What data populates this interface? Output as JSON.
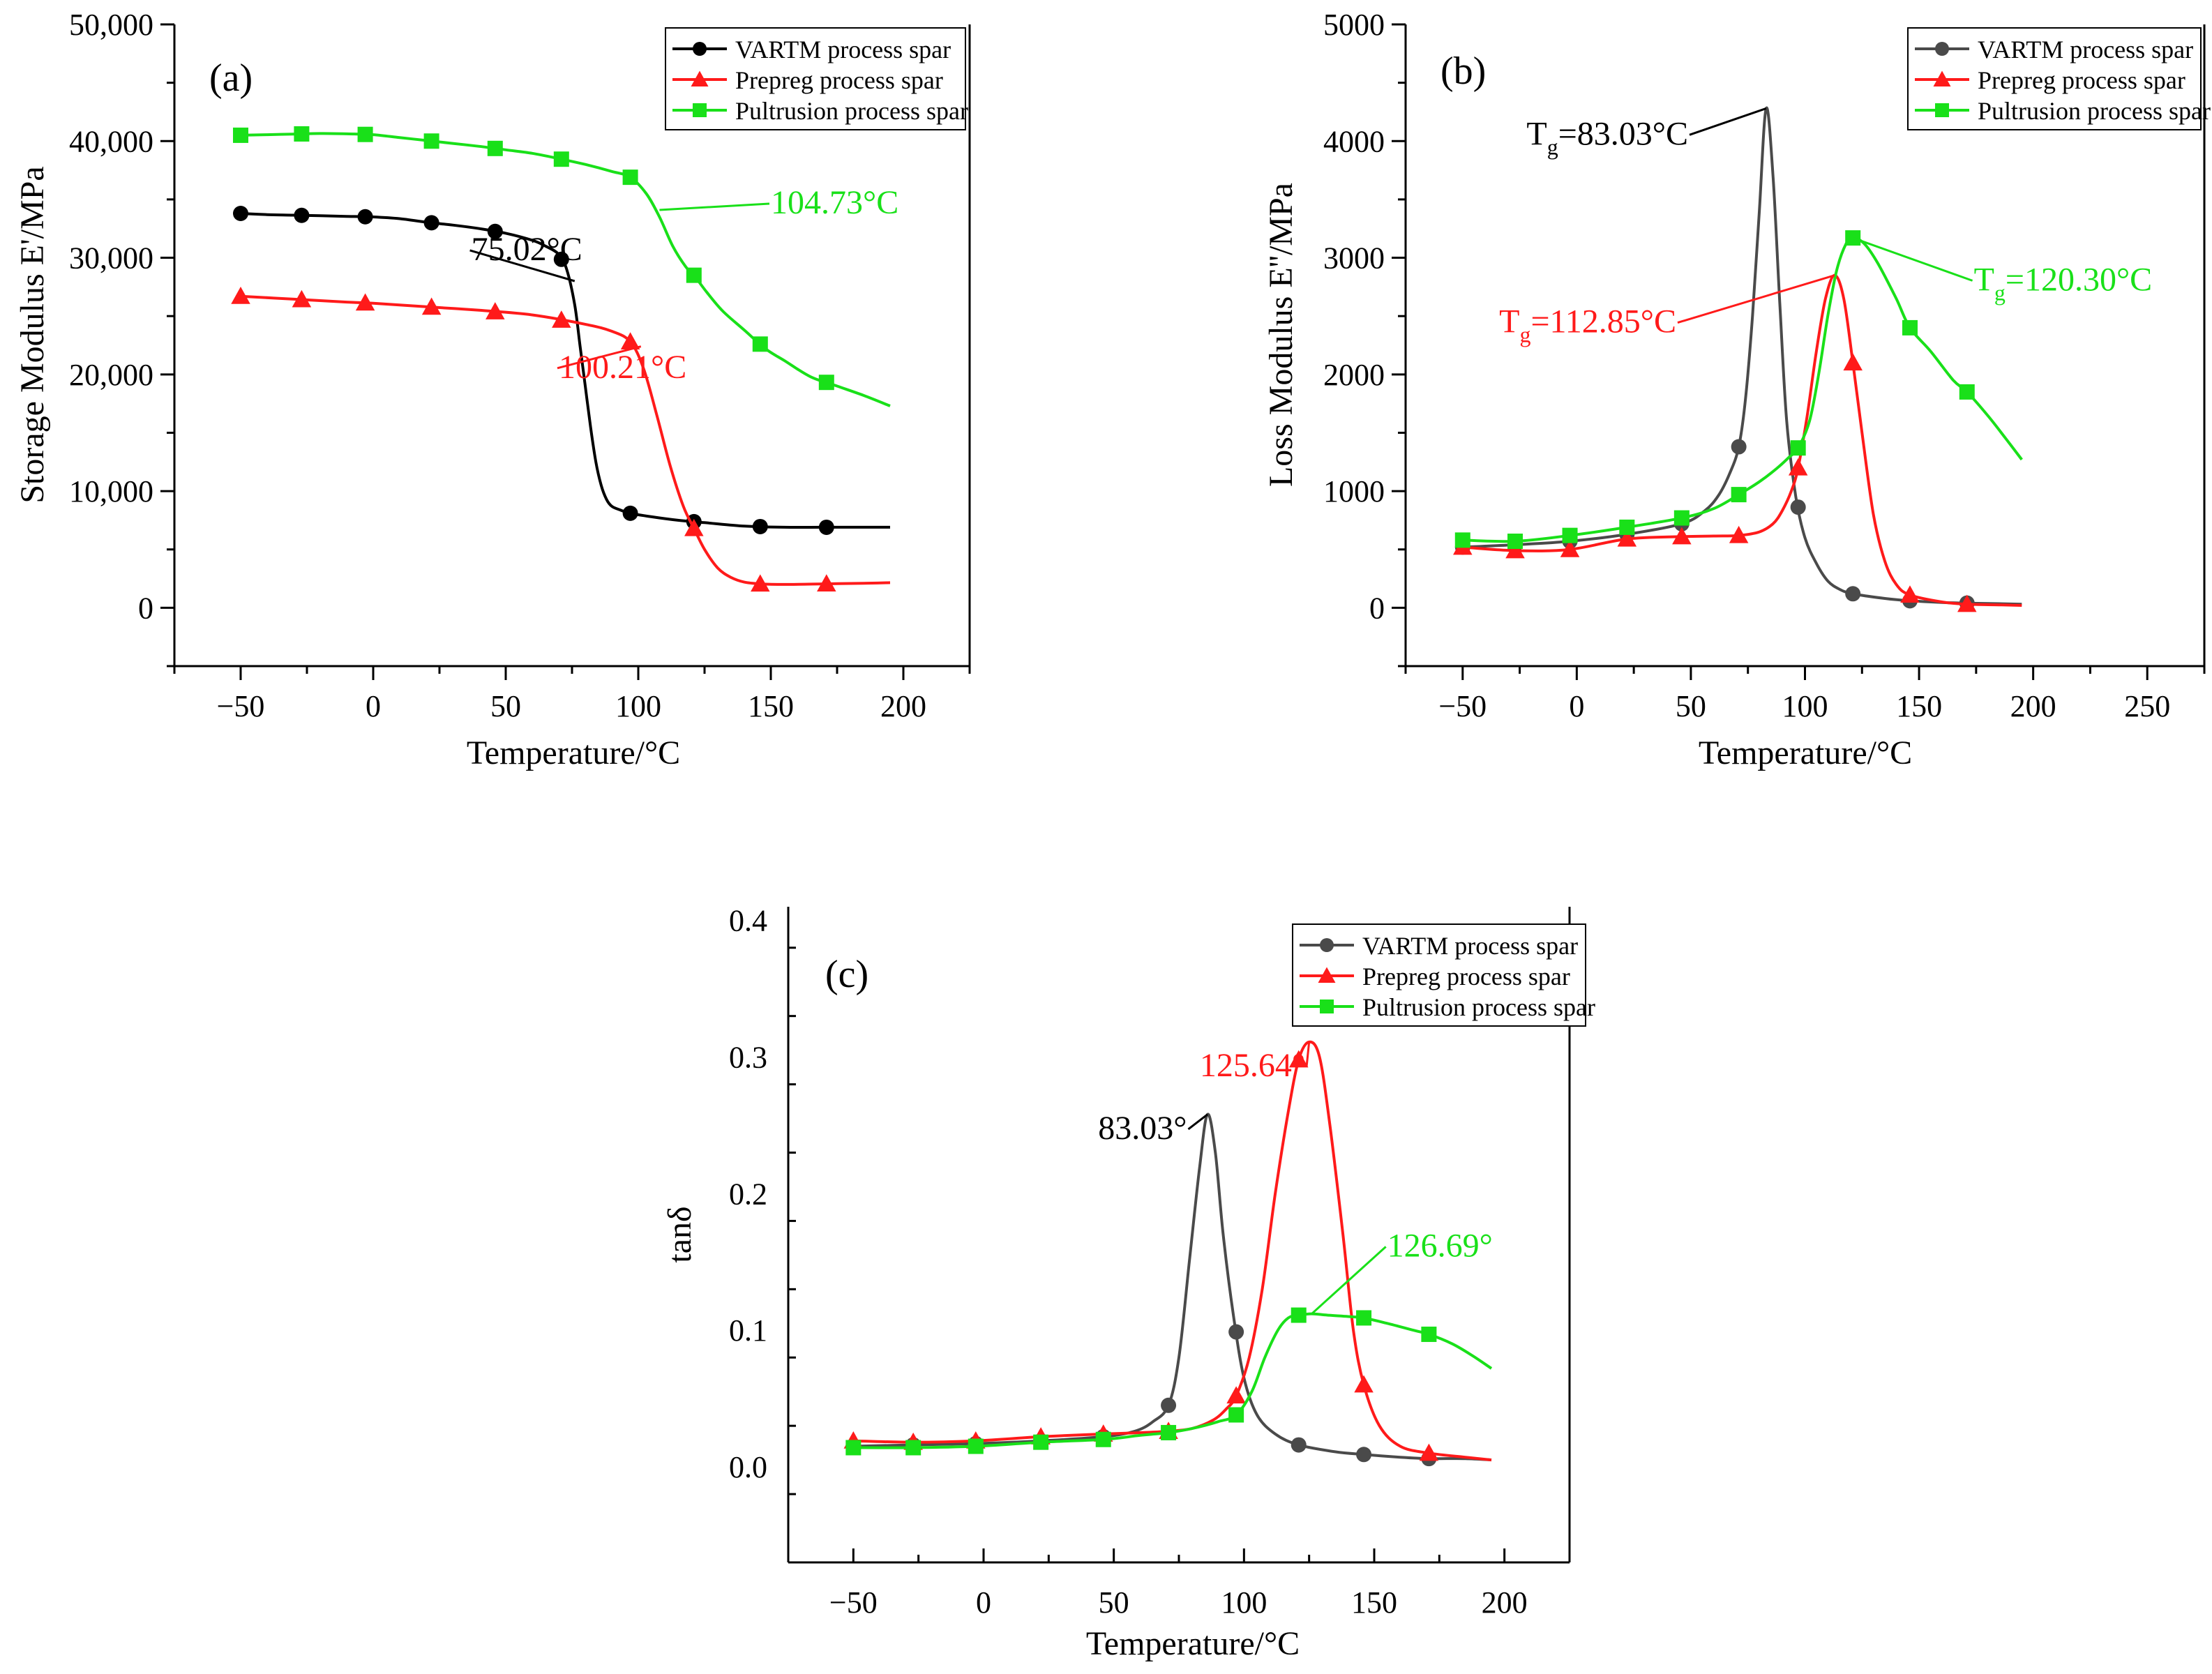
{
  "series_colors": {
    "VARTM": "#000000",
    "VARTM_b": "#4a4a4a",
    "Prepreg": "#ff1a1a",
    "Pultrusion": "#19e019"
  },
  "chart_data": [
    {
      "type": "line",
      "panel_label": "(a)",
      "xlabel": "Temperature/°C",
      "ylabel": "Storage Modulus E'/MPa",
      "xlim": [
        -75,
        225
      ],
      "ylim": [
        -5000,
        50000
      ],
      "xticks": [
        -50,
        0,
        50,
        100,
        150,
        200
      ],
      "xtick_labels": [
        "−50",
        "0",
        "50",
        "100",
        "150",
        "200"
      ],
      "yticks": [
        0,
        10000,
        20000,
        30000,
        40000,
        50000
      ],
      "ytick_labels": [
        "0",
        "10,000",
        "20,000",
        "30,000",
        "40,000",
        "50,000"
      ],
      "legend": "top-right",
      "series": [
        {
          "key": "vartm",
          "name": "VARTM process spar",
          "color": "#000000",
          "marker": "circle",
          "x": [
            -50,
            -40,
            -30,
            -20,
            -10,
            0,
            10,
            20,
            30,
            40,
            50,
            60,
            65,
            70,
            73,
            76,
            78,
            80,
            82,
            84,
            86,
            88,
            90,
            93,
            97,
            105,
            115,
            125,
            140,
            155,
            170,
            185,
            195
          ],
          "y": [
            33800,
            33700,
            33650,
            33600,
            33550,
            33500,
            33350,
            33050,
            32800,
            32500,
            32100,
            31500,
            31000,
            30300,
            29000,
            26000,
            22500,
            19000,
            15500,
            12500,
            10500,
            9300,
            8700,
            8400,
            8100,
            7800,
            7500,
            7300,
            7000,
            6900,
            6900,
            6900,
            6900
          ],
          "marker_x": [
            -50,
            -27,
            -3,
            22,
            46,
            71,
            97,
            121,
            146,
            171
          ]
        },
        {
          "key": "prepreg",
          "name": "Prepreg process spar",
          "color": "#ff1a1a",
          "marker": "triangle",
          "x": [
            -50,
            -30,
            -10,
            0,
            20,
            40,
            60,
            80,
            90,
            97,
            102,
            107,
            112,
            117,
            121,
            125,
            130,
            135,
            140,
            146,
            155,
            170,
            185,
            195
          ],
          "y": [
            26700,
            26450,
            26200,
            26100,
            25800,
            25500,
            25100,
            24300,
            23700,
            22800,
            20500,
            16500,
            12200,
            8700,
            6800,
            5000,
            3400,
            2600,
            2200,
            2050,
            2000,
            2050,
            2100,
            2150
          ],
          "marker_x": [
            -50,
            -27,
            -3,
            22,
            46,
            71,
            97,
            121,
            146,
            171
          ]
        },
        {
          "key": "pultrusion",
          "name": "Pultrusion process spar",
          "color": "#19e019",
          "marker": "square",
          "x": [
            -50,
            -40,
            -30,
            -20,
            -10,
            0,
            10,
            20,
            30,
            40,
            50,
            60,
            70,
            80,
            90,
            97,
            103,
            108,
            113,
            118,
            121,
            126,
            132,
            140,
            148,
            155,
            165,
            175,
            185,
            195
          ],
          "y": [
            40500,
            40550,
            40600,
            40650,
            40620,
            40550,
            40300,
            40050,
            39800,
            39550,
            39250,
            38950,
            38500,
            38000,
            37400,
            36900,
            35500,
            33500,
            31000,
            29200,
            28500,
            27000,
            25400,
            23800,
            22200,
            21200,
            19800,
            19000,
            18200,
            17300
          ],
          "marker_x": [
            -50,
            -27,
            -3,
            22,
            46,
            71,
            97,
            121,
            146,
            171
          ]
        }
      ],
      "annotations": [
        {
          "key": "a_ann_vartm",
          "text": "75.02°C",
          "color": "#000000",
          "x": 37,
          "y": 29800,
          "line_to": [
            76,
            28000
          ]
        },
        {
          "key": "a_ann_prepreg",
          "text": "100.21°C",
          "color": "#ff1a1a",
          "x": 70,
          "y": 19700,
          "line_to": [
            101,
            22400
          ]
        },
        {
          "key": "a_ann_pultrusion",
          "text": "104.73°C",
          "color": "#19e019",
          "x": 150,
          "y": 33800,
          "line_to": [
            108,
            34100
          ]
        }
      ]
    },
    {
      "type": "line",
      "panel_label": "(b)",
      "xlabel": "Temperature/°C",
      "ylabel": "Loss Modulus E''/MPa",
      "xlim": [
        -75,
        275
      ],
      "ylim": [
        -500,
        5000
      ],
      "xticks": [
        -50,
        0,
        50,
        100,
        150,
        200,
        250
      ],
      "xtick_labels": [
        "−50",
        "0",
        "50",
        "100",
        "150",
        "200",
        "250"
      ],
      "yticks": [
        0,
        1000,
        2000,
        3000,
        4000,
        5000
      ],
      "ytick_labels": [
        "0",
        "1000",
        "2000",
        "3000",
        "4000",
        "5000"
      ],
      "legend": "top-right",
      "series": [
        {
          "key": "vartm",
          "name": "VARTM process spar",
          "color": "#4a4a4a",
          "marker": "circle",
          "x": [
            -50,
            -27,
            -3,
            22,
            46,
            56,
            62,
            67,
            71,
            74,
            77,
            80,
            83,
            86,
            89,
            92,
            96,
            100,
            105,
            110,
            115,
            121,
            135,
            146,
            160,
            171,
            185,
            195
          ],
          "y": [
            520,
            540,
            570,
            630,
            720,
            830,
            960,
            1150,
            1380,
            1800,
            2500,
            3400,
            4280,
            3700,
            2600,
            1600,
            950,
            600,
            380,
            230,
            160,
            120,
            80,
            60,
            45,
            40,
            35,
            30
          ],
          "marker_x": [
            -50,
            -27,
            -3,
            22,
            46,
            71,
            97,
            121,
            146,
            171
          ]
        },
        {
          "key": "prepreg",
          "name": "Prepreg process spar",
          "color": "#ff1a1a",
          "marker": "triangle",
          "x": [
            -50,
            -27,
            -3,
            22,
            46,
            60,
            71,
            80,
            86,
            90,
            94,
            97,
            101,
            105,
            109,
            113,
            117,
            121,
            125,
            130,
            135,
            140,
            146,
            160,
            171,
            185,
            195
          ],
          "y": [
            520,
            490,
            500,
            590,
            610,
            615,
            620,
            650,
            720,
            830,
            1000,
            1200,
            1650,
            2200,
            2650,
            2850,
            2650,
            2100,
            1500,
            800,
            400,
            200,
            110,
            50,
            30,
            25,
            20
          ],
          "marker_x": [
            -50,
            -27,
            -3,
            22,
            46,
            71,
            97,
            121,
            146,
            171
          ]
        },
        {
          "key": "pultrusion",
          "name": "Pultrusion process spar",
          "color": "#19e019",
          "marker": "square",
          "x": [
            -50,
            -27,
            -3,
            22,
            46,
            60,
            71,
            80,
            88,
            93,
            97,
            102,
            106,
            110,
            114,
            118,
            121,
            126,
            132,
            140,
            146,
            155,
            165,
            171,
            180,
            188,
            195
          ],
          "y": [
            580,
            570,
            620,
            690,
            770,
            850,
            970,
            1080,
            1200,
            1290,
            1370,
            1600,
            2000,
            2500,
            2900,
            3120,
            3170,
            3120,
            2950,
            2650,
            2400,
            2200,
            1950,
            1850,
            1650,
            1450,
            1270
          ],
          "marker_x": [
            -50,
            -27,
            -3,
            22,
            46,
            71,
            97,
            121,
            146,
            171
          ]
        }
      ],
      "annotations": [
        {
          "key": "b_ann_vartm",
          "text": "Tg=83.03°C",
          "tg": true,
          "color": "#000000",
          "x": -22,
          "y": 3970,
          "line_to": [
            83,
            4280
          ]
        },
        {
          "key": "b_ann_prepreg",
          "text": "Tg=112.85°C",
          "tg": true,
          "color": "#ff1a1a",
          "x": -34,
          "y": 2360,
          "line_to": [
            113,
            2850
          ]
        },
        {
          "key": "b_ann_pultrusion",
          "text": "Tg=120.30°C",
          "tg": true,
          "color": "#19e019",
          "x": 174,
          "y": 2720,
          "line_to": [
            121,
            3170
          ]
        }
      ]
    },
    {
      "type": "line",
      "panel_label": "(c)",
      "xlabel": "Temperature/°C",
      "ylabel": "tanδ",
      "xlim": [
        -75,
        225
      ],
      "ylim": [
        -0.07,
        0.41
      ],
      "xticks": [
        -50,
        0,
        50,
        100,
        150,
        200
      ],
      "xtick_labels": [
        "−50",
        "0",
        "50",
        "100",
        "150",
        "200"
      ],
      "yticks": [
        0.0,
        0.1,
        0.2,
        0.3,
        0.4
      ],
      "ytick_labels": [
        "0.0",
        "0.1",
        "0.2",
        "0.3",
        "0.4"
      ],
      "legend": "top-right",
      "series": [
        {
          "key": "vartm",
          "name": "VARTM process spar",
          "color": "#4a4a4a",
          "marker": "circle",
          "x": [
            -50,
            -27,
            -3,
            22,
            46,
            58,
            65,
            71,
            75,
            79,
            83,
            86,
            89,
            92,
            96,
            100,
            105,
            112,
            121,
            135,
            146,
            160,
            171,
            185,
            195
          ],
          "y": [
            0.015,
            0.016,
            0.017,
            0.019,
            0.022,
            0.026,
            0.033,
            0.045,
            0.08,
            0.15,
            0.22,
            0.258,
            0.23,
            0.17,
            0.11,
            0.065,
            0.038,
            0.024,
            0.016,
            0.011,
            0.009,
            0.007,
            0.006,
            0.006,
            0.005
          ],
          "marker_x": [
            -50,
            -27,
            -3,
            22,
            46,
            71,
            97,
            121,
            146,
            171
          ]
        },
        {
          "key": "prepreg",
          "name": "Prepreg process spar",
          "color": "#ff1a1a",
          "marker": "triangle",
          "x": [
            -50,
            -27,
            -3,
            22,
            46,
            60,
            71,
            80,
            88,
            93,
            97,
            102,
            107,
            112,
            117,
            121,
            125,
            129,
            133,
            138,
            142,
            146,
            152,
            160,
            171,
            185,
            195
          ],
          "y": [
            0.019,
            0.018,
            0.019,
            0.022,
            0.024,
            0.025,
            0.026,
            0.028,
            0.034,
            0.042,
            0.052,
            0.08,
            0.13,
            0.2,
            0.26,
            0.298,
            0.311,
            0.3,
            0.25,
            0.17,
            0.1,
            0.06,
            0.03,
            0.015,
            0.01,
            0.007,
            0.005
          ],
          "marker_x": [
            -50,
            -27,
            -3,
            22,
            46,
            71,
            97,
            121,
            146,
            171
          ]
        },
        {
          "key": "pultrusion",
          "name": "Pultrusion process spar",
          "color": "#19e019",
          "marker": "square",
          "x": [
            -50,
            -27,
            -3,
            22,
            46,
            60,
            71,
            80,
            90,
            97,
            103,
            108,
            113,
            117,
            121,
            126,
            132,
            140,
            146,
            155,
            165,
            171,
            180,
            188,
            195
          ],
          "y": [
            0.014,
            0.014,
            0.015,
            0.018,
            0.02,
            0.023,
            0.025,
            0.028,
            0.033,
            0.038,
            0.055,
            0.08,
            0.1,
            0.109,
            0.111,
            0.112,
            0.111,
            0.11,
            0.109,
            0.105,
            0.1,
            0.097,
            0.09,
            0.081,
            0.072
          ],
          "marker_x": [
            -50,
            -27,
            -3,
            22,
            46,
            71,
            97,
            121,
            146,
            171
          ]
        }
      ],
      "annotations": [
        {
          "key": "c_ann_vartm",
          "text": "83.03°",
          "color": "#000000",
          "x": 44,
          "y": 0.24,
          "line_to": [
            86,
            0.258
          ]
        },
        {
          "key": "c_ann_prepreg",
          "text": "125.64°",
          "color": "#ff1a1a",
          "x": 83,
          "y": 0.286,
          "line_to": [
            125,
            0.311
          ]
        },
        {
          "key": "c_ann_pultrusion",
          "text": "126.69°",
          "color": "#19e019",
          "x": 155,
          "y": 0.154,
          "line_to": [
            126,
            0.112
          ]
        }
      ]
    }
  ]
}
